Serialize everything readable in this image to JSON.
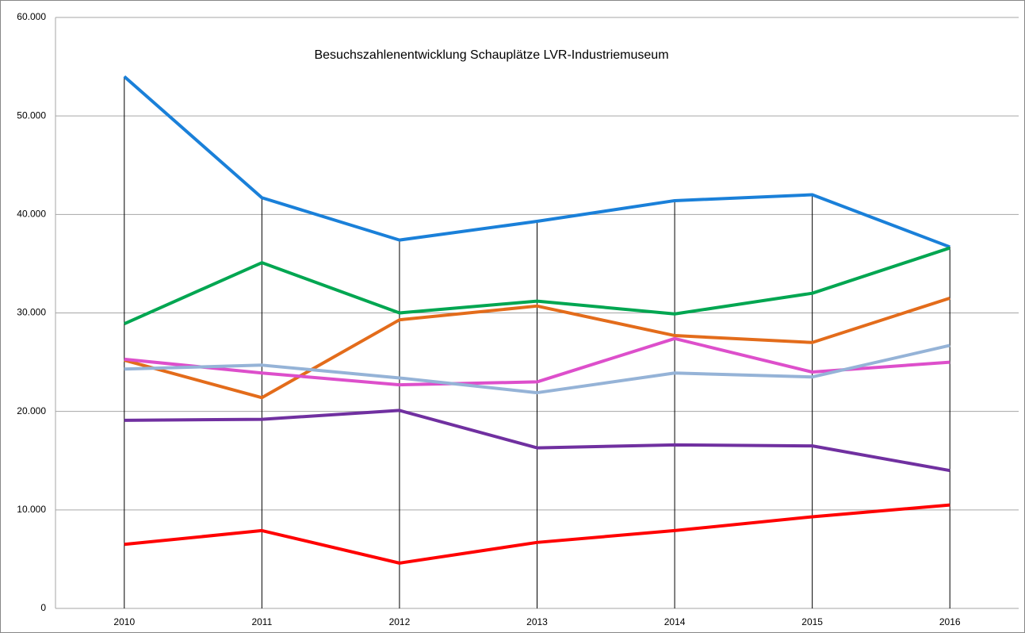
{
  "chart_data": {
    "type": "line",
    "title": "Besuchszahlenentwicklung Schauplätze LVR-Industriemuseum",
    "categories": [
      "2010",
      "2011",
      "2012",
      "2013",
      "2014",
      "2015",
      "2016"
    ],
    "series": [
      {
        "color": "#1a80d9",
        "values": [
          54000,
          41700,
          37400,
          39300,
          41400,
          42000,
          36700
        ]
      },
      {
        "color": "#00a651",
        "values": [
          28900,
          35100,
          30000,
          31200,
          29900,
          32000,
          36600
        ]
      },
      {
        "color": "#e36c1b",
        "values": [
          25200,
          21400,
          29300,
          30700,
          27700,
          27000,
          31500
        ]
      },
      {
        "color": "#dd4fcb",
        "values": [
          25300,
          23900,
          22700,
          23000,
          27400,
          24000,
          25000
        ]
      },
      {
        "color": "#95b3d7",
        "values": [
          24300,
          24700,
          23400,
          21900,
          23900,
          23500,
          26700
        ]
      },
      {
        "color": "#7030a0",
        "values": [
          19100,
          19200,
          20100,
          16300,
          16600,
          16500,
          14000
        ]
      },
      {
        "color": "#ff0000",
        "values": [
          6500,
          7900,
          4600,
          6700,
          7900,
          9300,
          10500
        ]
      }
    ],
    "ylim": [
      0,
      60000
    ],
    "yticks": [
      0,
      {
        "value": 10000,
        "label": "10.000"
      },
      {
        "value": 20000,
        "label": "20.000"
      },
      {
        "value": 30000,
        "label": "30.000"
      },
      {
        "value": 40000,
        "label": "40.000"
      },
      {
        "value": 50000,
        "label": "50.000"
      },
      {
        "value": 60000,
        "label": "60.000"
      }
    ],
    "grid": true
  }
}
